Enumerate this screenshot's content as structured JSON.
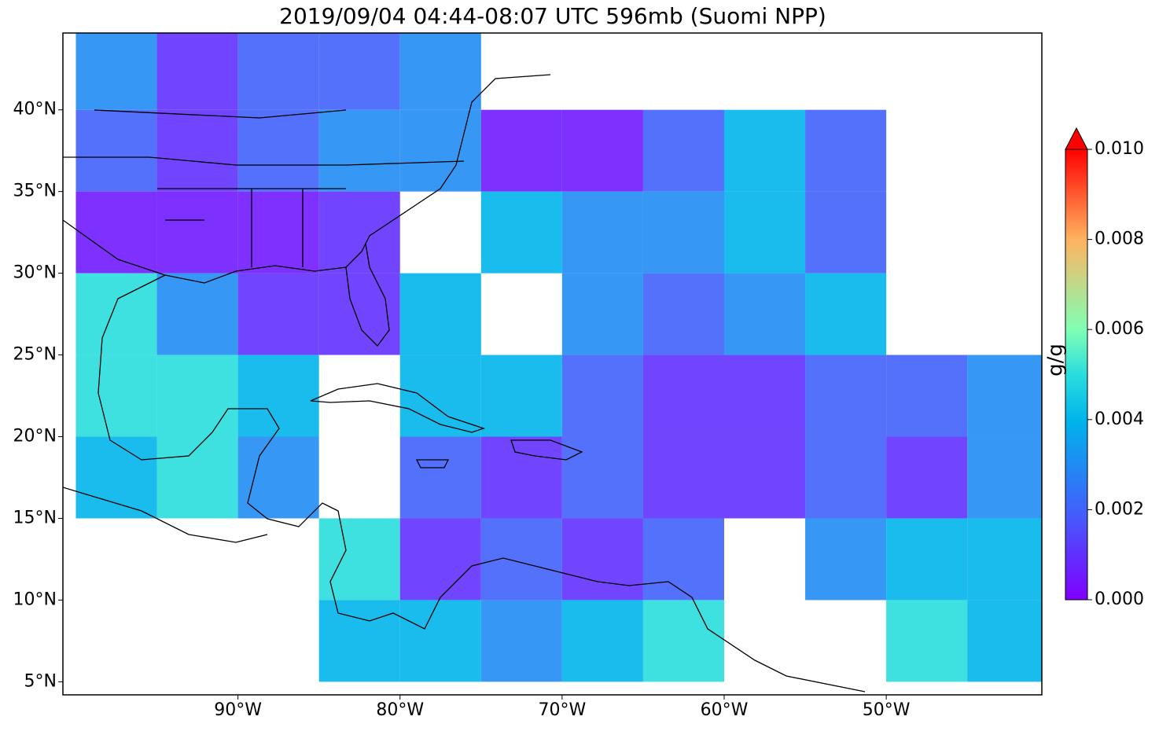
{
  "chart_data": {
    "type": "heatmap",
    "title": "2019/09/04 04:44-08:07 UTC 596mb (Suomi NPP)",
    "xlim": [
      -100.8,
      -40.4
    ],
    "ylim": [
      4.2,
      44.7
    ],
    "xticks": [
      {
        "value": -90,
        "label": "90°W"
      },
      {
        "value": -80,
        "label": "80°W"
      },
      {
        "value": -70,
        "label": "70°W"
      },
      {
        "value": -60,
        "label": "60°W"
      },
      {
        "value": -50,
        "label": "50°W"
      }
    ],
    "yticks": [
      {
        "value": 5,
        "label": "5°N"
      },
      {
        "value": 10,
        "label": "10°N"
      },
      {
        "value": 15,
        "label": "15°N"
      },
      {
        "value": 20,
        "label": "20°N"
      },
      {
        "value": 25,
        "label": "25°N"
      },
      {
        "value": 30,
        "label": "30°N"
      },
      {
        "value": 35,
        "label": "35°N"
      },
      {
        "value": 40,
        "label": "40°N"
      }
    ],
    "x": [
      -97.5,
      -92.5,
      -87.5,
      -82.5,
      -77.5,
      -72.5,
      -67.5,
      -62.5,
      -57.5,
      -52.5,
      -47.5,
      -42.5
    ],
    "y": [
      42.5,
      37.5,
      32.5,
      27.5,
      22.5,
      17.5,
      12.5,
      7.5
    ],
    "values": [
      [
        0.003,
        0.001,
        0.002,
        0.002,
        0.003,
        null,
        null,
        null,
        null,
        null,
        null,
        null
      ],
      [
        0.002,
        0.001,
        0.002,
        0.003,
        0.003,
        0.0005,
        0.0005,
        0.002,
        0.004,
        0.002,
        null,
        null
      ],
      [
        0.0005,
        0.0005,
        0.0005,
        0.001,
        null,
        0.004,
        0.003,
        0.003,
        0.004,
        0.002,
        null,
        null
      ],
      [
        0.005,
        0.003,
        0.001,
        0.001,
        0.004,
        null,
        0.003,
        0.002,
        0.003,
        0.004,
        null,
        null
      ],
      [
        0.005,
        0.005,
        0.004,
        null,
        0.004,
        0.004,
        0.002,
        0.001,
        0.001,
        0.002,
        0.002,
        0.003
      ],
      [
        0.004,
        0.005,
        0.003,
        null,
        0.002,
        0.001,
        0.002,
        0.001,
        0.001,
        0.002,
        0.001,
        0.003
      ],
      [
        null,
        null,
        null,
        0.005,
        0.001,
        0.002,
        0.001,
        0.002,
        null,
        0.003,
        0.004,
        0.004
      ],
      [
        null,
        null,
        null,
        0.004,
        0.004,
        0.003,
        0.004,
        0.005,
        null,
        null,
        0.005,
        0.004
      ]
    ],
    "colorbar": {
      "label": "g/g",
      "lim": [
        0,
        0.01
      ],
      "extend": "max",
      "ticks": [
        {
          "value": 0,
          "label": "0.000"
        },
        {
          "value": 0.002,
          "label": "0.002"
        },
        {
          "value": 0.004,
          "label": "0.004"
        },
        {
          "value": 0.006,
          "label": "0.006"
        },
        {
          "value": 0.008,
          "label": "0.008"
        },
        {
          "value": 0.01,
          "label": "0.010"
        }
      ]
    }
  }
}
